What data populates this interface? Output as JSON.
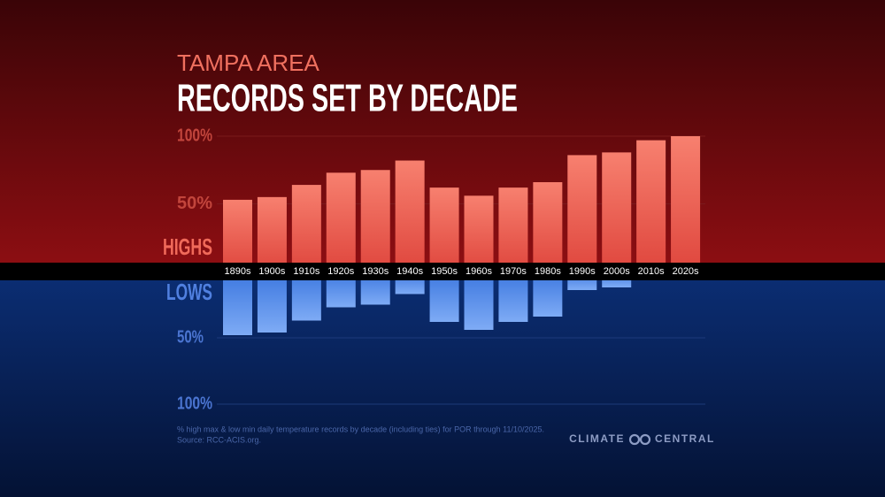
{
  "chart_data": {
    "type": "bar",
    "subtitle": "TAMPA AREA",
    "title": "RECORDS SET BY DECADE",
    "categories": [
      "1890s",
      "1900s",
      "1910s",
      "1920s",
      "1930s",
      "1940s",
      "1950s",
      "1960s",
      "1970s",
      "1980s",
      "1990s",
      "2000s",
      "2010s",
      "2020s"
    ],
    "series": [
      {
        "name": "HIGHS",
        "color": "#ee5e50",
        "values": [
          53,
          55,
          64,
          73,
          75,
          82,
          62,
          56,
          62,
          66,
          86,
          88,
          97,
          100
        ]
      },
      {
        "name": "LOWS",
        "color": "#5b8fea",
        "axis": "y2",
        "values": [
          48,
          46,
          37,
          27,
          25,
          17,
          38,
          44,
          38,
          34,
          14,
          12,
          0,
          0
        ]
      }
    ],
    "ylim": [
      0,
      100
    ],
    "yticks": [
      {
        "value": 50,
        "label": "50%"
      },
      {
        "value": 100,
        "label": "100%"
      }
    ],
    "y2lim": [
      0,
      100
    ],
    "y2ticks": [
      {
        "value": 50,
        "label": "50%"
      },
      {
        "value": 100,
        "label": "100%"
      }
    ],
    "grid": true,
    "note": "% high max & low min daily temperature records by decade (including ties) for POR through 11/10/2025.",
    "source": "Source: RCC-ACIS.org.",
    "brand": [
      "CLIMATE",
      "CENTRAL"
    ]
  }
}
